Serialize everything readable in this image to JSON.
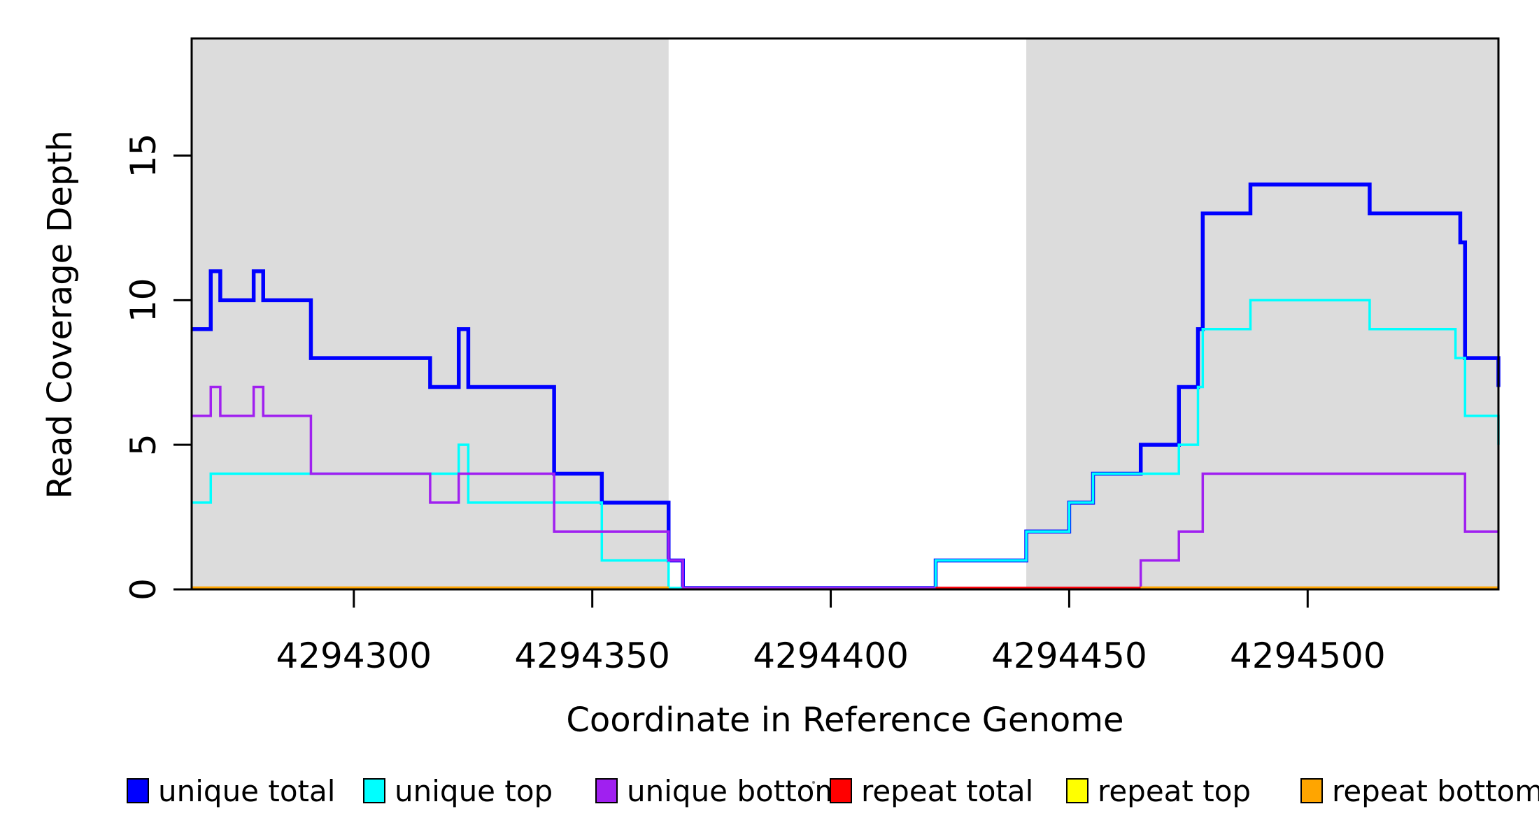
{
  "chart_data": {
    "type": "line",
    "subtype": "step",
    "title": "",
    "xlabel": "Coordinate in Reference Genome",
    "ylabel": "Read Coverage Depth",
    "xlim": [
      4294266,
      4294540
    ],
    "ylim": [
      0,
      19.05
    ],
    "x_ticks": [
      4294300,
      4294350,
      4294400,
      4294450,
      4294500
    ],
    "y_ticks": [
      0,
      5,
      10,
      15
    ],
    "grid": false,
    "legend_position": "bottom",
    "region_color": "#DCDCDC",
    "axis_color": "#000000",
    "shaded_regions": [
      {
        "from": 4294266,
        "to": 4294366
      },
      {
        "from": 4294441,
        "to": 4294540
      }
    ],
    "series": [
      {
        "name": "unique total",
        "color": "#0000FF",
        "stroke_width": 5.5,
        "segments": [
          {
            "steps": [
              [
                4294266,
                9
              ],
              [
                4294270,
                11
              ],
              [
                4294272,
                10
              ],
              [
                4294279,
                11
              ],
              [
                4294281,
                10
              ],
              [
                4294291,
                8
              ],
              [
                4294316,
                7
              ],
              [
                4294322,
                9
              ],
              [
                4294324,
                7
              ],
              [
                4294342,
                4
              ],
              [
                4294352,
                3
              ],
              [
                4294366,
                1
              ],
              [
                4294369,
                0
              ],
              [
                4294422,
                1
              ],
              [
                4294441,
                2
              ],
              [
                4294450,
                3
              ],
              [
                4294455,
                4
              ],
              [
                4294465,
                5
              ],
              [
                4294473,
                7
              ],
              [
                4294477,
                9
              ],
              [
                4294478,
                13
              ],
              [
                4294488,
                14
              ],
              [
                4294513,
                13
              ],
              [
                4294532,
                12
              ],
              [
                4294533,
                8
              ],
              [
                4294540,
                7
              ]
            ],
            "end": 4294540
          }
        ]
      },
      {
        "name": "unique top",
        "color": "#00FFFF",
        "stroke_width": 3.5,
        "segments": [
          {
            "steps": [
              [
                4294266,
                3
              ],
              [
                4294270,
                4
              ],
              [
                4294322,
                5
              ],
              [
                4294324,
                3
              ],
              [
                4294352,
                1
              ],
              [
                4294366,
                0
              ],
              [
                4294422,
                1
              ],
              [
                4294441,
                2
              ],
              [
                4294450,
                3
              ],
              [
                4294455,
                4
              ],
              [
                4294473,
                5
              ],
              [
                4294477,
                7
              ],
              [
                4294478,
                9
              ],
              [
                4294488,
                10
              ],
              [
                4294513,
                9
              ],
              [
                4294531,
                8
              ],
              [
                4294533,
                6
              ],
              [
                4294540,
                5
              ]
            ],
            "end": 4294540
          }
        ]
      },
      {
        "name": "unique bottom",
        "color": "#A020F0",
        "stroke_width": 3.5,
        "segments": [
          {
            "steps": [
              [
                4294266,
                6
              ],
              [
                4294270,
                7
              ],
              [
                4294272,
                6
              ],
              [
                4294279,
                7
              ],
              [
                4294281,
                6
              ],
              [
                4294291,
                4
              ],
              [
                4294316,
                3
              ],
              [
                4294322,
                4
              ],
              [
                4294342,
                2
              ],
              [
                4294366,
                1
              ],
              [
                4294369,
                0
              ],
              [
                4294465,
                1
              ],
              [
                4294473,
                2
              ],
              [
                4294478,
                4
              ],
              [
                4294533,
                2
              ]
            ],
            "end": 4294540
          }
        ]
      },
      {
        "name": "repeat total",
        "color": "#FF0000",
        "stroke_width": 3.5,
        "segments": [
          {
            "steps": [
              [
                4294422,
                0
              ]
            ],
            "end": 4294540
          }
        ]
      },
      {
        "name": "repeat top",
        "color": "#FFFF00",
        "stroke_width": 3.5,
        "segments": [
          {
            "steps": [
              [
                4294266,
                0
              ]
            ],
            "end": 4294366
          },
          {
            "steps": [
              [
                4294465,
                0
              ]
            ],
            "end": 4294540
          }
        ]
      },
      {
        "name": "repeat bottom",
        "color": "#FFA500",
        "stroke_width": 4.5,
        "segments": [
          {
            "steps": [
              [
                4294266,
                0
              ]
            ],
            "end": 4294366
          },
          {
            "steps": [
              [
                4294465,
                0
              ]
            ],
            "end": 4294540
          }
        ]
      }
    ]
  }
}
